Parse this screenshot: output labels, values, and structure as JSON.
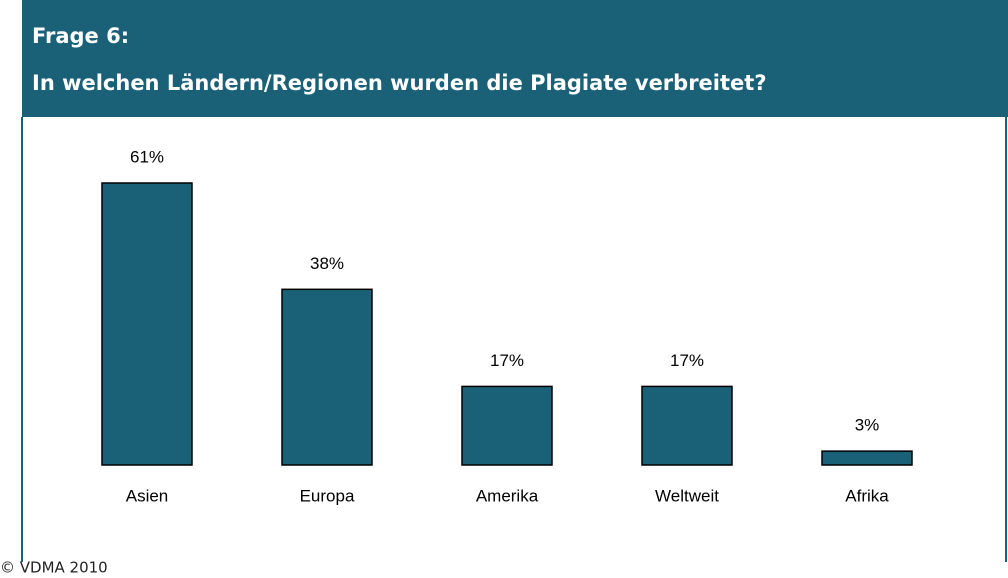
{
  "chart_data": {
    "type": "bar",
    "title": "Frage 6:",
    "subtitle": "In welchen Ländern/Regionen wurden die Plagiate verbreitet?",
    "categories": [
      "Asien",
      "Europa",
      "Amerika",
      "Weltweit",
      "Afrika"
    ],
    "values": [
      61,
      38,
      17,
      17,
      3
    ],
    "value_labels": [
      "61%",
      "38%",
      "17%",
      "17%",
      "3%"
    ],
    "color": "#1a6178",
    "footer": "© VDMA 2010"
  }
}
